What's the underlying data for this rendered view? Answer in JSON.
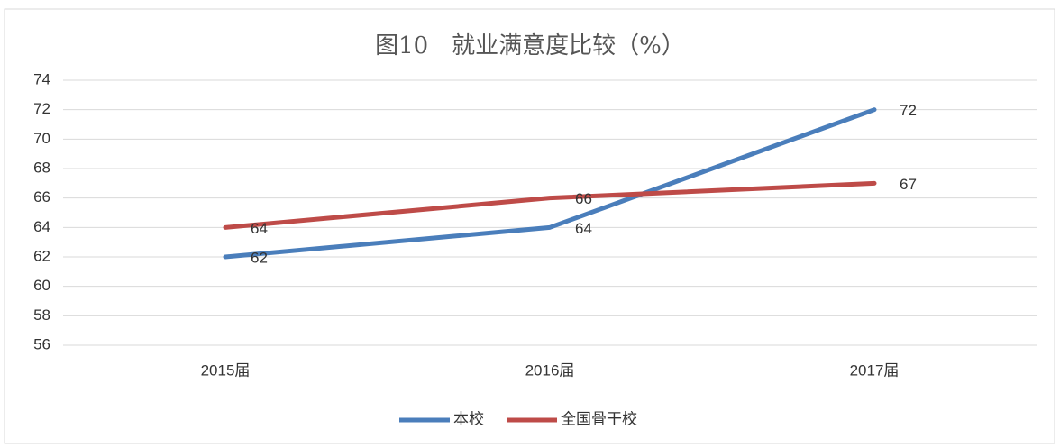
{
  "chart_data": {
    "type": "line",
    "title": "图10　就业满意度比较（%）",
    "categories": [
      "2015届",
      "2016届",
      "2017届"
    ],
    "series": [
      {
        "name": "本校",
        "color": "#4a7ebb",
        "values": [
          62,
          64,
          72
        ]
      },
      {
        "name": "全国骨干校",
        "color": "#be4b48",
        "values": [
          64,
          66,
          67
        ]
      }
    ],
    "ylim": [
      56,
      74
    ],
    "yticks": [
      56,
      58,
      60,
      62,
      64,
      66,
      68,
      70,
      72,
      74
    ],
    "grid": true,
    "legend": "bottom"
  }
}
